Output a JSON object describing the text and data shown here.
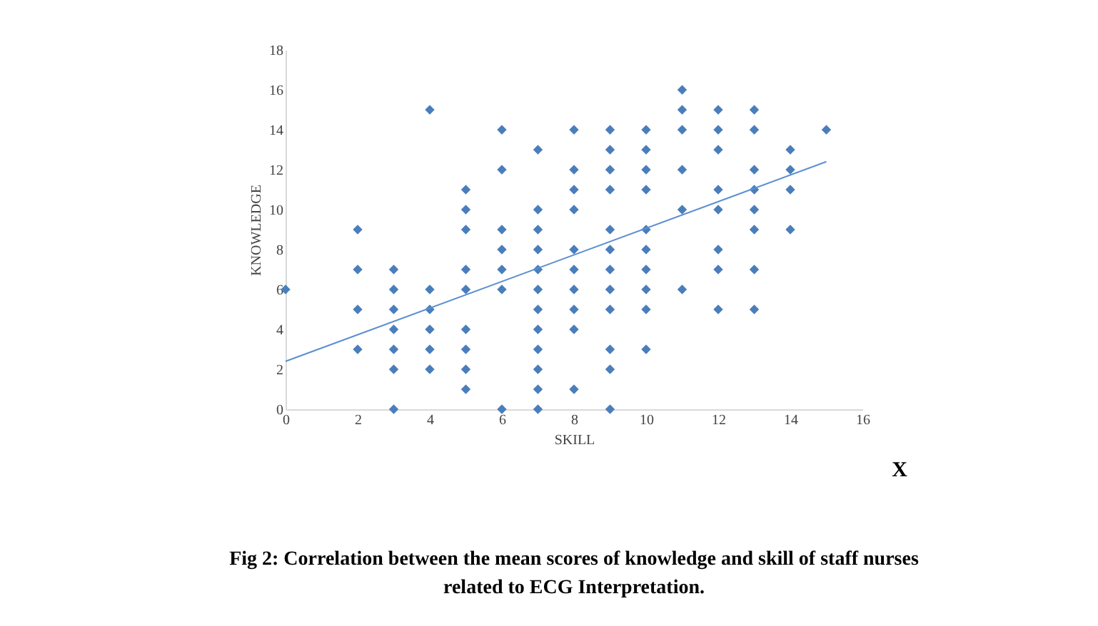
{
  "chart_data": {
    "type": "scatter",
    "title": "Fig 2: Correlation between the mean scores of knowledge and skill of staff nurses related to ECG Interpretation.",
    "xlabel": "SKILL",
    "ylabel": "KNOWLEDGE",
    "annotations": [
      "X"
    ],
    "xlim": [
      0,
      16
    ],
    "xticks": [
      0,
      2,
      4,
      6,
      8,
      10,
      12,
      14,
      16
    ],
    "ylim": [
      0,
      18
    ],
    "yticks": [
      0,
      2,
      4,
      6,
      8,
      10,
      12,
      14,
      16,
      18
    ],
    "grid": false,
    "marker": "diamond",
    "series": [
      {
        "color": "#4a7ebb",
        "x": [
          0,
          2,
          2,
          2,
          2,
          3,
          3,
          3,
          3,
          3,
          3,
          3,
          4,
          4,
          4,
          4,
          4,
          4,
          5,
          5,
          5,
          5,
          5,
          5,
          5,
          5,
          5,
          6,
          6,
          6,
          6,
          6,
          6,
          6,
          7,
          7,
          7,
          7,
          7,
          7,
          7,
          7,
          7,
          7,
          7,
          7,
          8,
          8,
          8,
          8,
          8,
          8,
          8,
          8,
          8,
          8,
          9,
          9,
          9,
          9,
          9,
          9,
          9,
          9,
          9,
          9,
          9,
          9,
          10,
          10,
          10,
          10,
          10,
          10,
          10,
          10,
          10,
          10,
          11,
          11,
          11,
          11,
          11,
          11,
          12,
          12,
          12,
          12,
          12,
          12,
          12,
          12,
          13,
          13,
          13,
          13,
          13,
          13,
          13,
          13,
          14,
          14,
          14,
          14,
          15
        ],
        "values": [
          6,
          3,
          5,
          7,
          9,
          0,
          2,
          3,
          4,
          5,
          6,
          7,
          2,
          3,
          4,
          5,
          6,
          15,
          1,
          2,
          3,
          4,
          6,
          7,
          9,
          10,
          11,
          0,
          6,
          7,
          8,
          9,
          12,
          14,
          0,
          1,
          2,
          3,
          4,
          5,
          6,
          7,
          8,
          9,
          10,
          13,
          1,
          4,
          5,
          6,
          7,
          8,
          10,
          11,
          12,
          14,
          0,
          2,
          3,
          5,
          6,
          7,
          8,
          9,
          11,
          12,
          13,
          14,
          3,
          5,
          6,
          7,
          8,
          9,
          11,
          12,
          13,
          14,
          6,
          10,
          12,
          14,
          15,
          16,
          5,
          7,
          8,
          10,
          11,
          13,
          14,
          15,
          5,
          7,
          9,
          10,
          11,
          12,
          14,
          15,
          9,
          11,
          12,
          13,
          14
        ]
      },
      {
        "type": "line",
        "color": "#5b8fd0",
        "marker": "none",
        "line_style": "solid",
        "x": [
          0,
          15
        ],
        "values": [
          2.4,
          12.4
        ]
      }
    ]
  }
}
